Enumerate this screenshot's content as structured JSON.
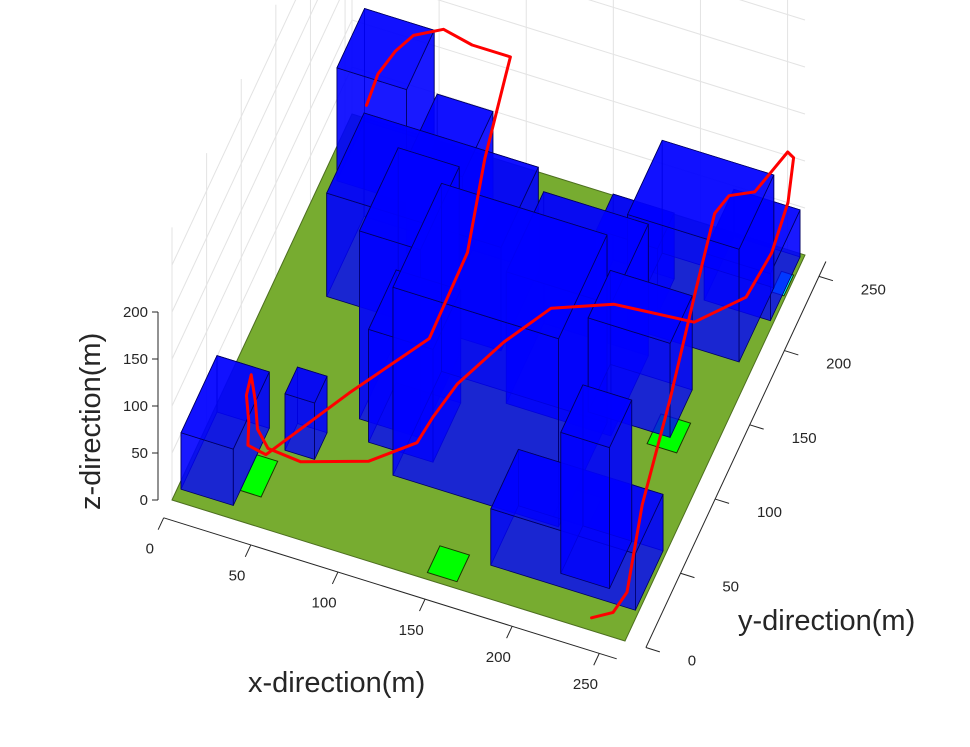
{
  "chart_data": {
    "type": "3d-scene",
    "xlabel": "x-direction(m)",
    "ylabel": "y-direction(m)",
    "zlabel": "z-direction(m)",
    "x_ticks": [
      "0",
      "50",
      "100",
      "150",
      "200",
      "250"
    ],
    "y_ticks": [
      "0",
      "50",
      "100",
      "150",
      "200",
      "250"
    ],
    "z_ticks": [
      "0",
      "50",
      "100",
      "150",
      "200"
    ],
    "xlim": [
      0,
      260
    ],
    "ylim": [
      0,
      260
    ],
    "zlim": [
      0,
      200
    ],
    "grid": true,
    "colors": {
      "ground": "#77ac30",
      "building": "#0000ff",
      "building_edge": "#000060",
      "green_zone": "#00ff00",
      "cyan_zone": "#00ffff",
      "trajectory": "#ff0000",
      "grid": "#e3e3e3"
    },
    "ground": {
      "x": [
        0,
        260
      ],
      "y": [
        0,
        260
      ]
    },
    "zones": [
      {
        "color": "green",
        "x": [
          32,
          44
        ],
        "y": [
          18,
          42
        ]
      },
      {
        "color": "green",
        "x": [
          42,
          58
        ],
        "y": [
          220,
          240
        ]
      },
      {
        "color": "green",
        "x": [
          145,
          162
        ],
        "y": [
          4,
          22
        ]
      },
      {
        "color": "green",
        "x": [
          225,
          242
        ],
        "y": [
          120,
          140
        ]
      },
      {
        "color": "green",
        "x": [
          195,
          215
        ],
        "y": [
          60,
          80
        ]
      },
      {
        "color": "cyan",
        "x": [
          252,
          259
        ],
        "y": [
          232,
          246
        ]
      }
    ],
    "buildings": [
      {
        "x": [
          2,
          32
        ],
        "y": [
          8,
          60
        ],
        "h": 60
      },
      {
        "x": [
          45,
          62
        ],
        "y": [
          50,
          68
        ],
        "h": 60
      },
      {
        "x": [
          30,
          130
        ],
        "y": [
          148,
          202
        ],
        "h": 110
      },
      {
        "x": [
          60,
          92
        ],
        "y": [
          188,
          232
        ],
        "h": 100
      },
      {
        "x": [
          75,
          110
        ],
        "y": [
          82,
          138
        ],
        "h": 200
      },
      {
        "x": [
          85,
          122
        ],
        "y": [
          70,
          110
        ],
        "h": 120
      },
      {
        "x": [
          8,
          48
        ],
        "y": [
          218,
          258
        ],
        "h": 120
      },
      {
        "x": [
          105,
          200
        ],
        "y": [
          55,
          125
        ],
        "h": 200
      },
      {
        "x": [
          145,
          205
        ],
        "y": [
          118,
          172
        ],
        "h": 140
      },
      {
        "x": [
          188,
          235
        ],
        "y": [
          128,
          160
        ],
        "h": 100
      },
      {
        "x": [
          165,
          200
        ],
        "y": [
          198,
          222
        ],
        "h": 70
      },
      {
        "x": [
          188,
          252
        ],
        "y": [
          185,
          235
        ],
        "h": 120
      },
      {
        "x": [
          212,
          240
        ],
        "y": [
          28,
          60
        ],
        "h": 150
      },
      {
        "x": [
          175,
          258
        ],
        "y": [
          20,
          60
        ],
        "h": 60
      },
      {
        "x": [
          220,
          258
        ],
        "y": [
          215,
          258
        ],
        "h": 50
      }
    ],
    "trajectory": [
      [
        240,
        2,
        10
      ],
      [
        250,
        8,
        12
      ],
      [
        254,
        18,
        20
      ],
      [
        250,
        50,
        60
      ],
      [
        246,
        100,
        90
      ],
      [
        241,
        150,
        125
      ],
      [
        238,
        185,
        150
      ],
      [
        241,
        198,
        150
      ],
      [
        253,
        205,
        150
      ],
      [
        256,
        220,
        148
      ],
      [
        258,
        240,
        140
      ],
      [
        259,
        246,
        125
      ],
      [
        259,
        238,
        90
      ],
      [
        256,
        222,
        60
      ],
      [
        248,
        205,
        35
      ],
      [
        225,
        188,
        22
      ],
      [
        180,
        185,
        20
      ],
      [
        150,
        170,
        22
      ],
      [
        135,
        140,
        25
      ],
      [
        122,
        105,
        28
      ],
      [
        118,
        80,
        30
      ],
      [
        116,
        62,
        30
      ],
      [
        95,
        45,
        25
      ],
      [
        60,
        35,
        20
      ],
      [
        40,
        38,
        18
      ],
      [
        34,
        38,
        35
      ],
      [
        32,
        40,
        60
      ],
      [
        28,
        44,
        80
      ],
      [
        26,
        42,
        60
      ],
      [
        29,
        38,
        40
      ],
      [
        32,
        30,
        45
      ],
      [
        34,
        24,
        40
      ],
      [
        42,
        30,
        25
      ],
      [
        70,
        80,
        28
      ],
      [
        100,
        120,
        40
      ],
      [
        110,
        150,
        90
      ],
      [
        110,
        175,
        150
      ],
      [
        112,
        200,
        200
      ],
      [
        110,
        212,
        200
      ],
      [
        88,
        212,
        200
      ],
      [
        70,
        216,
        200
      ],
      [
        52,
        218,
        180
      ],
      [
        40,
        222,
        150
      ],
      [
        30,
        222,
        120
      ],
      [
        25,
        218,
        90
      ]
    ]
  }
}
